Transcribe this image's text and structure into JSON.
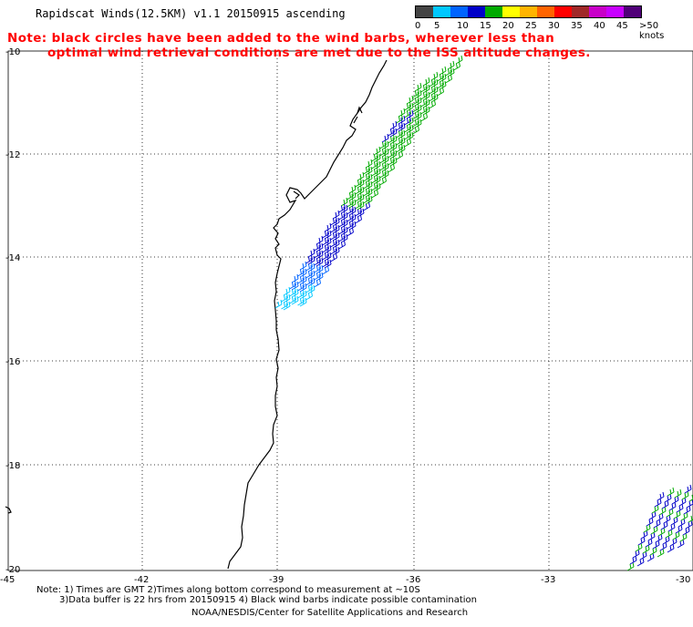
{
  "header": {
    "title": "Rapidscat Winds(12.5KM) v1.1 20150915 ascending",
    "note_line1": "Note: black circles have been added to the wind barbs, wherever less than",
    "note_line2": "optimal wind retrieval conditions are met due to the ISS altitude changes."
  },
  "color_scale": {
    "colors": [
      "#444444",
      "#00c8ff",
      "#0064ff",
      "#0000c8",
      "#00aa00",
      "#ffff00",
      "#ffb400",
      "#ff6400",
      "#ff0000",
      "#a02828",
      "#c800c8",
      "#c800ff",
      "#500078"
    ],
    "labels": [
      "0",
      "5",
      "10",
      "15",
      "20",
      "25",
      "30",
      "35",
      "40",
      "45",
      ">50 knots"
    ]
  },
  "axes": {
    "lon_labels": [
      "-45",
      "-42",
      "-39",
      "-36",
      "-33",
      "-30"
    ],
    "lat_labels": [
      "-10",
      "-12",
      "-14",
      "-16",
      "-18",
      "-20"
    ]
  },
  "footer": {
    "line1": "Note: 1) Times are GMT 2)Times along bottom correspond to measurement at ~10S",
    "line2": "3)Data buffer is 22 hrs from 20150915 4) Black wind barbs indicate possible contamination",
    "line3": "NOAA/NESDIS/Center for Satellite Applications and Research"
  }
}
